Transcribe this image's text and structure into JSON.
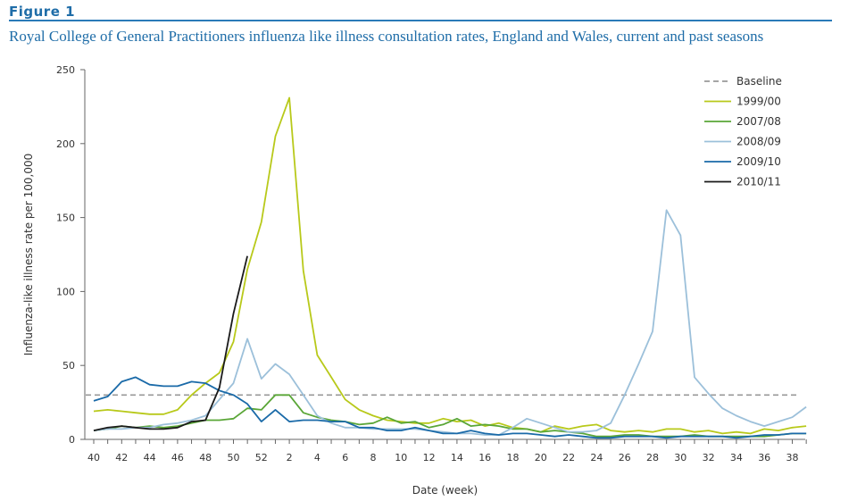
{
  "figure": {
    "label": "Figure 1",
    "title": "Royal College of General Practitioners influenza like illness consultation rates, England and Wales, current and past seasons"
  },
  "chart_data": {
    "type": "line",
    "xlabel": "Date (week)",
    "ylabel": "Influenza-like illness rate per 100,000",
    "ylim": [
      0,
      250
    ],
    "yticks": [
      0,
      50,
      100,
      150,
      200,
      250
    ],
    "weeks": [
      40,
      41,
      42,
      43,
      44,
      45,
      46,
      47,
      48,
      49,
      50,
      51,
      52,
      1,
      2,
      3,
      4,
      5,
      6,
      7,
      8,
      9,
      10,
      11,
      12,
      13,
      14,
      15,
      16,
      17,
      18,
      19,
      20,
      21,
      22,
      23,
      24,
      25,
      26,
      27,
      28,
      29,
      30,
      31,
      32,
      33,
      34,
      35,
      36,
      37,
      38,
      39
    ],
    "xtick_labels": [
      "40",
      "42",
      "44",
      "46",
      "48",
      "50",
      "52",
      "2",
      "4",
      "6",
      "8",
      "10",
      "12",
      "14",
      "16",
      "18",
      "20",
      "22",
      "24",
      "26",
      "28",
      "30",
      "32",
      "34",
      "36",
      "38"
    ],
    "grid": false,
    "legend_position": "top-right",
    "baseline": {
      "name": "Baseline",
      "value": 30,
      "color": "#999999",
      "dashed": true
    },
    "series": [
      {
        "name": "1999/00",
        "color": "#b8c91a",
        "values": [
          19,
          20,
          19,
          18,
          17,
          17,
          20,
          30,
          38,
          45,
          66,
          115,
          147,
          205,
          231,
          114,
          57,
          42,
          27,
          20,
          16,
          13,
          12,
          11,
          11,
          14,
          12,
          13,
          9,
          11,
          8,
          7,
          5,
          9,
          7,
          9,
          10,
          6,
          5,
          6,
          5,
          7,
          7,
          5,
          6,
          4,
          5,
          4,
          7,
          6,
          8,
          9
        ]
      },
      {
        "name": "2007/08",
        "color": "#5aa637",
        "values": [
          6,
          7,
          9,
          8,
          9,
          8,
          9,
          11,
          13,
          13,
          14,
          21,
          20,
          30,
          30,
          18,
          15,
          13,
          12,
          10,
          11,
          15,
          11,
          12,
          8,
          10,
          14,
          9,
          10,
          9,
          7,
          7,
          5,
          6,
          5,
          4,
          2,
          2,
          3,
          3,
          2,
          2,
          2,
          3,
          2,
          2,
          2,
          2,
          2,
          3,
          4,
          4
        ]
      },
      {
        "name": "2008/09",
        "color": "#9cc0da",
        "values": [
          6,
          7,
          7,
          8,
          8,
          10,
          11,
          13,
          16,
          27,
          38,
          68,
          41,
          51,
          44,
          30,
          16,
          11,
          8,
          8,
          7,
          7,
          7,
          7,
          6,
          5,
          4,
          4,
          3,
          3,
          8,
          14,
          11,
          8,
          5,
          5,
          6,
          11,
          30,
          51,
          73,
          155,
          138,
          42,
          31,
          21,
          16,
          12,
          9,
          12,
          15,
          22
        ]
      },
      {
        "name": "2009/10",
        "color": "#1a6aa8",
        "values": [
          26,
          29,
          39,
          42,
          37,
          36,
          36,
          39,
          38,
          33,
          30,
          24,
          12,
          20,
          12,
          13,
          13,
          12,
          12,
          8,
          8,
          6,
          6,
          8,
          6,
          4,
          4,
          6,
          4,
          3,
          4,
          4,
          3,
          2,
          3,
          2,
          1,
          1,
          2,
          2,
          2,
          1,
          2,
          2,
          2,
          2,
          1,
          2,
          3,
          3,
          4,
          4
        ]
      },
      {
        "name": "2010/11",
        "color": "#1a1a1a",
        "values": [
          6,
          8,
          9,
          8,
          7,
          7,
          8,
          12,
          13,
          35,
          85,
          124
        ]
      }
    ]
  }
}
